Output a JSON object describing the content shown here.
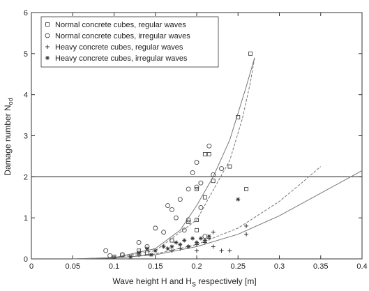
{
  "chart_data": {
    "type": "scatter",
    "title": "",
    "xlabel": "Wave height H and H",
    "xlabel_sub": "S",
    "xlabel_suffix": " respectively [m]",
    "ylabel": "Damage number N",
    "ylabel_sub": "od",
    "xlim": [
      0,
      0.4
    ],
    "ylim": [
      0,
      6
    ],
    "xticks": [
      0,
      0.05,
      0.1,
      0.15,
      0.2,
      0.25,
      0.3,
      0.35,
      0.4
    ],
    "xtick_labels": [
      "0",
      "0.05",
      "0.1",
      "0.15",
      "0.2",
      "0.25",
      "0.3",
      "0.35",
      "0.4"
    ],
    "yticks": [
      0,
      1,
      2,
      3,
      4,
      5,
      6
    ],
    "ytick_labels": [
      "0",
      "1",
      "2",
      "3",
      "4",
      "5",
      "6"
    ],
    "reference_line": {
      "y": 2
    },
    "grid": false,
    "legend_placement": "top-left",
    "series": [
      {
        "name": "Normal concrete cubes, regular waves",
        "marker": "square",
        "points": [
          [
            0.1,
            0.05
          ],
          [
            0.11,
            0.1
          ],
          [
            0.13,
            0.2
          ],
          [
            0.17,
            0.45
          ],
          [
            0.19,
            0.9
          ],
          [
            0.2,
            0.95
          ],
          [
            0.21,
            1.5
          ],
          [
            0.22,
            1.9
          ],
          [
            0.24,
            2.25
          ],
          [
            0.21,
            2.55
          ],
          [
            0.215,
            2.55
          ],
          [
            0.25,
            3.45
          ],
          [
            0.265,
            5.0
          ],
          [
            0.26,
            1.7
          ],
          [
            0.2,
            1.7
          ],
          [
            0.14,
            0.15
          ],
          [
            0.2,
            0.7
          ]
        ]
      },
      {
        "name": "Normal concrete cubes, irregular waves",
        "marker": "circle",
        "points": [
          [
            0.09,
            0.2
          ],
          [
            0.095,
            0.08
          ],
          [
            0.11,
            0.1
          ],
          [
            0.13,
            0.4
          ],
          [
            0.14,
            0.3
          ],
          [
            0.15,
            0.75
          ],
          [
            0.16,
            0.65
          ],
          [
            0.165,
            1.3
          ],
          [
            0.17,
            1.2
          ],
          [
            0.18,
            1.45
          ],
          [
            0.185,
            0.7
          ],
          [
            0.19,
            0.95
          ],
          [
            0.19,
            1.7
          ],
          [
            0.195,
            2.1
          ],
          [
            0.2,
            1.75
          ],
          [
            0.2,
            2.35
          ],
          [
            0.205,
            1.85
          ],
          [
            0.21,
            0.55
          ],
          [
            0.215,
            2.75
          ],
          [
            0.22,
            2.05
          ],
          [
            0.23,
            2.2
          ],
          [
            0.205,
            1.25
          ],
          [
            0.175,
            1.0
          ]
        ]
      },
      {
        "name": "Heavy concrete cubes, regular waves",
        "marker": "plus",
        "points": [
          [
            0.1,
            0.05
          ],
          [
            0.13,
            0.1
          ],
          [
            0.17,
            0.2
          ],
          [
            0.18,
            0.25
          ],
          [
            0.19,
            0.3
          ],
          [
            0.2,
            0.35
          ],
          [
            0.21,
            0.4
          ],
          [
            0.215,
            0.5
          ],
          [
            0.22,
            0.65
          ],
          [
            0.23,
            0.2
          ],
          [
            0.24,
            0.2
          ],
          [
            0.26,
            0.8
          ],
          [
            0.26,
            0.6
          ],
          [
            0.2,
            0.2
          ],
          [
            0.22,
            0.3
          ]
        ]
      },
      {
        "name": "Heavy concrete cubes, irregular waves",
        "marker": "star",
        "points": [
          [
            0.12,
            0.05
          ],
          [
            0.13,
            0.15
          ],
          [
            0.14,
            0.25
          ],
          [
            0.15,
            0.2
          ],
          [
            0.16,
            0.3
          ],
          [
            0.165,
            0.25
          ],
          [
            0.17,
            0.3
          ],
          [
            0.175,
            0.4
          ],
          [
            0.18,
            0.35
          ],
          [
            0.185,
            0.45
          ],
          [
            0.19,
            0.3
          ],
          [
            0.195,
            0.5
          ],
          [
            0.2,
            0.4
          ],
          [
            0.205,
            0.5
          ],
          [
            0.21,
            0.45
          ],
          [
            0.215,
            0.55
          ],
          [
            0.25,
            1.45
          ],
          [
            0.145,
            0.1
          ]
        ]
      }
    ],
    "fitted_curves": [
      {
        "style": "dashed",
        "points": [
          [
            0.05,
            0.0
          ],
          [
            0.1,
            0.03
          ],
          [
            0.15,
            0.2
          ],
          [
            0.2,
            0.95
          ],
          [
            0.24,
            2.4
          ],
          [
            0.255,
            3.4
          ],
          [
            0.265,
            4.3
          ],
          [
            0.27,
            4.9
          ]
        ]
      },
      {
        "style": "solid",
        "points": [
          [
            0.05,
            0.0
          ],
          [
            0.1,
            0.03
          ],
          [
            0.15,
            0.25
          ],
          [
            0.18,
            0.7
          ],
          [
            0.2,
            1.3
          ],
          [
            0.22,
            2.0
          ],
          [
            0.24,
            2.9
          ],
          [
            0.26,
            4.2
          ],
          [
            0.27,
            4.9
          ]
        ]
      },
      {
        "style": "dashed",
        "points": [
          [
            0.05,
            0.0
          ],
          [
            0.1,
            0.02
          ],
          [
            0.15,
            0.12
          ],
          [
            0.2,
            0.35
          ],
          [
            0.25,
            0.75
          ],
          [
            0.3,
            1.4
          ],
          [
            0.33,
            1.9
          ],
          [
            0.35,
            2.25
          ]
        ]
      },
      {
        "style": "solid",
        "points": [
          [
            0.05,
            0.0
          ],
          [
            0.1,
            0.02
          ],
          [
            0.15,
            0.1
          ],
          [
            0.2,
            0.3
          ],
          [
            0.25,
            0.6
          ],
          [
            0.3,
            1.05
          ],
          [
            0.35,
            1.6
          ],
          [
            0.4,
            2.15
          ]
        ]
      }
    ]
  }
}
